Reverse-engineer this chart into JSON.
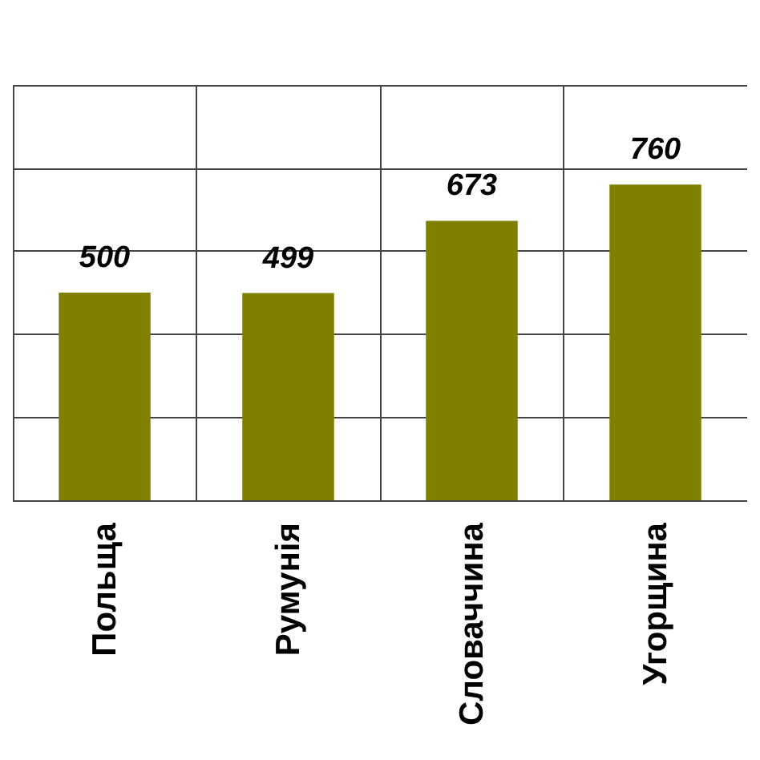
{
  "chart_data": {
    "type": "bar",
    "categories": [
      "Польща",
      "Румунія",
      "Словаччина",
      "Угорщина"
    ],
    "values": [
      500,
      499,
      673,
      760
    ],
    "color": "#808000",
    "data_labels": true,
    "ylim": [
      0,
      1000
    ],
    "yticks": [
      {
        "value": 0,
        "label": null
      },
      {
        "value": 200,
        "label": null
      },
      {
        "value": 400,
        "label": null
      },
      {
        "value": 600,
        "label": null
      },
      {
        "value": 800,
        "label": null
      },
      {
        "value": 1000,
        "label": null
      }
    ],
    "tick_labels": "x",
    "grid": true
  }
}
